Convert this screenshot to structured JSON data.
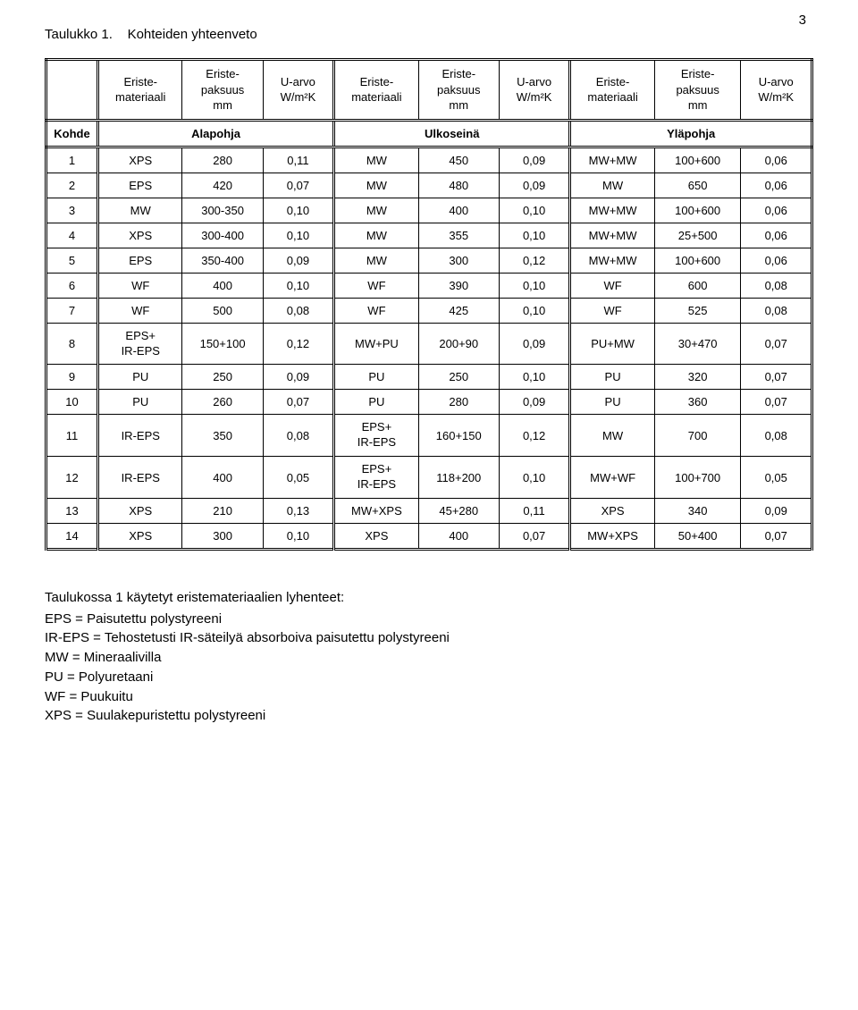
{
  "page_number": "3",
  "caption_prefix": "Taulukko 1.",
  "caption_title": "Kohteiden yhteenveto",
  "header": {
    "col0": "",
    "mat": [
      "Eriste-",
      "materiaali"
    ],
    "thk": [
      "Eriste-",
      "paksuus",
      "mm"
    ],
    "uval": [
      "U-arvo",
      "W/m²K"
    ],
    "kohde": "Kohde",
    "groups": [
      "Alapohja",
      "Ulkoseinä",
      "Yläpohja"
    ]
  },
  "rows": [
    {
      "idx": "1",
      "a_mat": "XPS",
      "a_thk": "280",
      "a_u": "0,11",
      "b_mat": "MW",
      "b_thk": "450",
      "b_u": "0,09",
      "c_mat": "MW+MW",
      "c_thk": "100+600",
      "c_u": "0,06"
    },
    {
      "idx": "2",
      "a_mat": "EPS",
      "a_thk": "420",
      "a_u": "0,07",
      "b_mat": "MW",
      "b_thk": "480",
      "b_u": "0,09",
      "c_mat": "MW",
      "c_thk": "650",
      "c_u": "0,06"
    },
    {
      "idx": "3",
      "a_mat": "MW",
      "a_thk": "300-350",
      "a_u": "0,10",
      "b_mat": "MW",
      "b_thk": "400",
      "b_u": "0,10",
      "c_mat": "MW+MW",
      "c_thk": "100+600",
      "c_u": "0,06"
    },
    {
      "idx": "4",
      "a_mat": "XPS",
      "a_thk": "300-400",
      "a_u": "0,10",
      "b_mat": "MW",
      "b_thk": "355",
      "b_u": "0,10",
      "c_mat": "MW+MW",
      "c_thk": "25+500",
      "c_u": "0,06"
    },
    {
      "idx": "5",
      "a_mat": "EPS",
      "a_thk": "350-400",
      "a_u": "0,09",
      "b_mat": "MW",
      "b_thk": "300",
      "b_u": "0,12",
      "c_mat": "MW+MW",
      "c_thk": "100+600",
      "c_u": "0,06"
    },
    {
      "idx": "6",
      "a_mat": "WF",
      "a_thk": "400",
      "a_u": "0,10",
      "b_mat": "WF",
      "b_thk": "390",
      "b_u": "0,10",
      "c_mat": "WF",
      "c_thk": "600",
      "c_u": "0,08"
    },
    {
      "idx": "7",
      "a_mat": "WF",
      "a_thk": "500",
      "a_u": "0,08",
      "b_mat": "WF",
      "b_thk": "425",
      "b_u": "0,10",
      "c_mat": "WF",
      "c_thk": "525",
      "c_u": "0,08"
    },
    {
      "idx": "8",
      "a_mat": [
        "EPS+",
        "IR-EPS"
      ],
      "a_thk": "150+100",
      "a_u": "0,12",
      "b_mat": "MW+PU",
      "b_thk": "200+90",
      "b_u": "0,09",
      "c_mat": "PU+MW",
      "c_thk": "30+470",
      "c_u": "0,07"
    },
    {
      "idx": "9",
      "a_mat": "PU",
      "a_thk": "250",
      "a_u": "0,09",
      "b_mat": "PU",
      "b_thk": "250",
      "b_u": "0,10",
      "c_mat": "PU",
      "c_thk": "320",
      "c_u": "0,07"
    },
    {
      "idx": "10",
      "a_mat": "PU",
      "a_thk": "260",
      "a_u": "0,07",
      "b_mat": "PU",
      "b_thk": "280",
      "b_u": "0,09",
      "c_mat": "PU",
      "c_thk": "360",
      "c_u": "0,07"
    },
    {
      "idx": "11",
      "a_mat": "IR-EPS",
      "a_thk": "350",
      "a_u": "0,08",
      "b_mat": [
        "EPS+",
        "IR-EPS"
      ],
      "b_thk": "160+150",
      "b_u": "0,12",
      "c_mat": "MW",
      "c_thk": "700",
      "c_u": "0,08"
    },
    {
      "idx": "12",
      "a_mat": "IR-EPS",
      "a_thk": "400",
      "a_u": "0,05",
      "b_mat": [
        "EPS+",
        "IR-EPS"
      ],
      "b_thk": "118+200",
      "b_u": "0,10",
      "c_mat": "MW+WF",
      "c_thk": "100+700",
      "c_u": "0,05"
    },
    {
      "idx": "13",
      "a_mat": "XPS",
      "a_thk": "210",
      "a_u": "0,13",
      "b_mat": "MW+XPS",
      "b_thk": "45+280",
      "b_u": "0,11",
      "c_mat": "XPS",
      "c_thk": "340",
      "c_u": "0,09"
    },
    {
      "idx": "14",
      "a_mat": "XPS",
      "a_thk": "300",
      "a_u": "0,10",
      "b_mat": "XPS",
      "b_thk": "400",
      "b_u": "0,07",
      "c_mat": "MW+XPS",
      "c_thk": "50+400",
      "c_u": "0,07"
    }
  ],
  "footer": {
    "lead": "Taulukossa 1 käytetyt eristemateriaalien lyhenteet:",
    "lines": [
      "EPS = Paisutettu polystyreeni",
      "IR-EPS = Tehostetusti IR-säteilyä absorboiva paisutettu polystyreeni",
      "MW = Mineraalivilla",
      "PU = Polyuretaani",
      "WF = Puukuitu",
      "XPS = Suulakepuristettu polystyreeni"
    ]
  },
  "col_widths": [
    "54px",
    "88px",
    "84px",
    "74px",
    "88px",
    "84px",
    "74px",
    "88px",
    "90px",
    "74px"
  ]
}
